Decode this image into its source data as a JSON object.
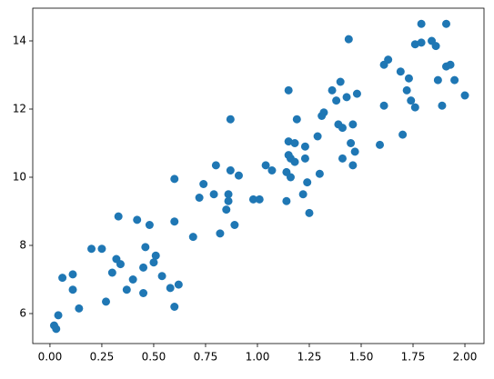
{
  "chart_data": {
    "type": "scatter",
    "color": "#1f77b4",
    "x": [
      0.02,
      0.03,
      0.04,
      0.06,
      0.11,
      0.11,
      0.14,
      0.2,
      0.25,
      0.27,
      0.3,
      0.32,
      0.34,
      0.33,
      0.37,
      0.4,
      0.42,
      0.45,
      0.45,
      0.46,
      0.48,
      0.5,
      0.51,
      0.54,
      0.58,
      0.6,
      0.6,
      0.6,
      0.62,
      0.69,
      0.72,
      0.74,
      0.79,
      0.8,
      0.82,
      0.85,
      0.86,
      0.86,
      0.87,
      0.87,
      0.89,
      0.91,
      0.98,
      1.01,
      1.04,
      1.07,
      1.14,
      1.14,
      1.15,
      1.15,
      1.15,
      1.16,
      1.16,
      1.18,
      1.18,
      1.19,
      1.22,
      1.23,
      1.23,
      1.24,
      1.25,
      1.29,
      1.3,
      1.31,
      1.32,
      1.36,
      1.38,
      1.4,
      1.39,
      1.41,
      1.41,
      1.43,
      1.44,
      1.45,
      1.46,
      1.46,
      1.47,
      1.48,
      1.59,
      1.61,
      1.61,
      1.63,
      1.69,
      1.7,
      1.72,
      1.73,
      1.74,
      1.76,
      1.76,
      1.79,
      1.79,
      1.84,
      1.86,
      1.87,
      1.89,
      1.91,
      1.91,
      1.93,
      1.95,
      2.0
    ],
    "values": [
      5.65,
      5.55,
      5.95,
      7.05,
      7.15,
      6.7,
      6.15,
      7.9,
      7.9,
      6.35,
      7.2,
      7.6,
      7.45,
      8.85,
      6.7,
      7.0,
      8.75,
      7.35,
      6.6,
      7.95,
      8.6,
      7.5,
      7.7,
      7.1,
      6.75,
      8.7,
      9.95,
      6.2,
      6.85,
      8.25,
      9.4,
      9.8,
      9.5,
      10.35,
      8.35,
      9.05,
      9.5,
      9.3,
      10.2,
      11.7,
      8.6,
      10.05,
      9.35,
      9.35,
      10.35,
      10.2,
      9.3,
      10.15,
      12.55,
      10.65,
      11.05,
      10.55,
      10.0,
      11.0,
      10.45,
      11.7,
      9.5,
      10.55,
      10.9,
      9.85,
      8.95,
      11.2,
      10.1,
      11.8,
      11.9,
      12.55,
      12.25,
      12.8,
      11.55,
      11.45,
      10.55,
      12.35,
      14.05,
      11.0,
      10.35,
      11.55,
      10.75,
      12.45,
      10.95,
      12.1,
      13.3,
      13.45,
      13.1,
      11.25,
      12.55,
      12.9,
      12.25,
      12.05,
      13.9,
      14.5,
      13.95,
      14.0,
      13.85,
      12.85,
      12.1,
      14.5,
      13.25,
      13.3,
      12.85,
      12.4
    ],
    "xlim": [
      -0.083,
      2.092
    ],
    "ylim": [
      5.12,
      14.96
    ],
    "xticks": [
      {
        "value": 0,
        "label": "0.00"
      },
      {
        "value": 0.25,
        "label": "0.25"
      },
      {
        "value": 0.5,
        "label": "0.50"
      },
      {
        "value": 0.75,
        "label": "0.75"
      },
      {
        "value": 1,
        "label": "1.00"
      },
      {
        "value": 1.25,
        "label": "1.25"
      },
      {
        "value": 1.5,
        "label": "1.50"
      },
      {
        "value": 1.75,
        "label": "1.75"
      },
      {
        "value": 2,
        "label": "2.00"
      }
    ],
    "yticks": [
      6,
      8,
      10,
      12,
      14
    ]
  }
}
